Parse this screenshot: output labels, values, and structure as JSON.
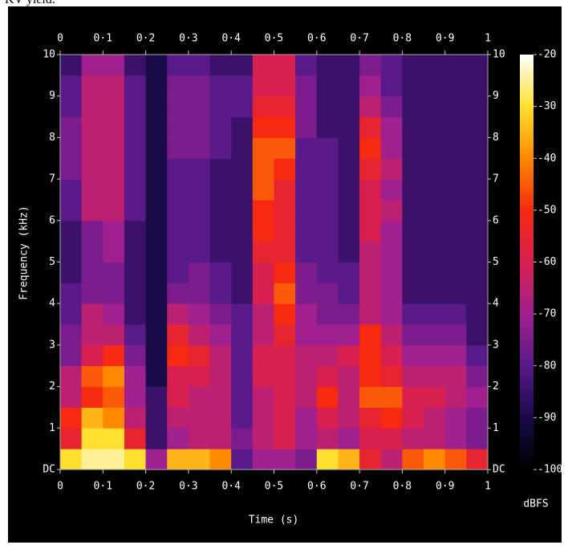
{
  "caption": "KV yield.",
  "chart_data": {
    "type": "heatmap",
    "x_label": "Time (s)",
    "y_label": "Frequency (kHz)",
    "colorbar_label": "dBFS",
    "xlim": [
      0,
      1
    ],
    "ylim": [
      0,
      10
    ],
    "zlim": [
      -100,
      -20
    ],
    "xticks": [
      0,
      {
        "value": 0.1,
        "label": "0·1"
      },
      {
        "value": 0.2,
        "label": "0·2"
      },
      {
        "value": 0.3,
        "label": "0·3"
      },
      {
        "value": 0.4,
        "label": "0·4"
      },
      {
        "value": 0.5,
        "label": "0·5"
      },
      {
        "value": 0.6,
        "label": "0·6"
      },
      {
        "value": 0.7,
        "label": "0·7"
      },
      {
        "value": 0.8,
        "label": "0·8"
      },
      {
        "value": 0.9,
        "label": "0·9"
      },
      1
    ],
    "yticks": [
      {
        "value": 0,
        "label": "DC"
      },
      1,
      2,
      3,
      4,
      5,
      6,
      7,
      8,
      9,
      10
    ],
    "zticks": [
      -20,
      -30,
      -40,
      -50,
      -60,
      -70,
      -80,
      -90,
      -100
    ],
    "colormap": [
      "#000000",
      "#1a0a48",
      "#5a1a8a",
      "#a0208f",
      "#d82050",
      "#f52a10",
      "#ff8a00",
      "#ffe030",
      "#ffffff"
    ],
    "z": [
      [
        -30,
        -55,
        -50,
        -65,
        -65,
        -75,
        -75,
        -80,
        -80,
        -85,
        -85,
        -85,
        -80,
        -80,
        -75,
        -75,
        -75,
        -80,
        -80,
        -85
      ],
      [
        -25,
        -30,
        -35,
        -50,
        -45,
        -60,
        -65,
        -65,
        -75,
        -75,
        -75,
        -75,
        -65,
        -65,
        -65,
        -65,
        -65,
        -65,
        -65,
        -70
      ],
      [
        -25,
        -30,
        -40,
        -45,
        -40,
        -50,
        -65,
        -70,
        -75,
        -75,
        -70,
        -70,
        -65,
        -65,
        -65,
        -65,
        -65,
        -65,
        -65,
        -70
      ],
      [
        -30,
        -55,
        -65,
        -70,
        -70,
        -75,
        -80,
        -85,
        -85,
        -85,
        -85,
        -85,
        -80,
        -80,
        -80,
        -80,
        -80,
        -80,
        -80,
        -85
      ],
      [
        -70,
        -85,
        -85,
        -85,
        -90,
        -90,
        -90,
        -90,
        -90,
        -90,
        -90,
        -90,
        -90,
        -90,
        -90,
        -90,
        -90,
        -90,
        -90,
        -90
      ],
      [
        -35,
        -70,
        -65,
        -60,
        -60,
        -50,
        -55,
        -65,
        -75,
        -80,
        -80,
        -80,
        -80,
        -80,
        -80,
        -75,
        -75,
        -75,
        -75,
        -80
      ],
      [
        -35,
        -65,
        -65,
        -65,
        -60,
        -55,
        -65,
        -70,
        -75,
        -75,
        -80,
        -80,
        -80,
        -80,
        -80,
        -75,
        -75,
        -75,
        -75,
        -80
      ],
      [
        -40,
        -65,
        -65,
        -65,
        -65,
        -65,
        -70,
        -75,
        -80,
        -80,
        -85,
        -85,
        -85,
        -85,
        -85,
        -80,
        -80,
        -80,
        -80,
        -85
      ],
      [
        -80,
        -75,
        -80,
        -80,
        -80,
        -80,
        -80,
        -80,
        -85,
        -85,
        -85,
        -85,
        -85,
        -85,
        -85,
        -85,
        -85,
        -80,
        -80,
        -85
      ],
      [
        -70,
        -65,
        -65,
        -65,
        -60,
        -60,
        -65,
        -65,
        -60,
        -60,
        -55,
        -50,
        -50,
        -45,
        -45,
        -45,
        -50,
        -55,
        -60,
        -60
      ],
      [
        -70,
        -60,
        -60,
        -60,
        -60,
        -60,
        -55,
        -50,
        -45,
        -50,
        -55,
        -55,
        -55,
        -55,
        -50,
        -45,
        -50,
        -55,
        -60,
        -60
      ],
      [
        -75,
        -70,
        -70,
        -65,
        -65,
        -65,
        -70,
        -70,
        -75,
        -75,
        -80,
        -80,
        -80,
        -80,
        -80,
        -80,
        -75,
        -75,
        -75,
        -80
      ],
      [
        -30,
        -65,
        -60,
        -50,
        -60,
        -65,
        -70,
        -75,
        -75,
        -80,
        -80,
        -80,
        -80,
        -80,
        -80,
        -80,
        -85,
        -85,
        -85,
        -85
      ],
      [
        -35,
        -70,
        -65,
        -65,
        -65,
        -60,
        -70,
        -75,
        -80,
        -80,
        -85,
        -85,
        -85,
        -85,
        -85,
        -85,
        -85,
        -85,
        -85,
        -85
      ],
      [
        -55,
        -60,
        -55,
        -45,
        -50,
        -50,
        -50,
        -65,
        -65,
        -65,
        -65,
        -60,
        -60,
        -60,
        -55,
        -50,
        -55,
        -65,
        -70,
        -75
      ],
      [
        -65,
        -60,
        -50,
        -45,
        -55,
        -60,
        -65,
        -70,
        -70,
        -70,
        -70,
        -70,
        -65,
        -70,
        -65,
        -70,
        -70,
        -75,
        -80,
        -80
      ],
      [
        -45,
        -65,
        -60,
        -60,
        -65,
        -70,
        -75,
        -80,
        -85,
        -85,
        -85,
        -85,
        -85,
        -85,
        -85,
        -85,
        -85,
        -85,
        -85,
        -85
      ],
      [
        -40,
        -65,
        -65,
        -60,
        -65,
        -70,
        -75,
        -80,
        -85,
        -85,
        -85,
        -85,
        -85,
        -85,
        -85,
        -85,
        -85,
        -85,
        -85,
        -85
      ],
      [
        -45,
        -70,
        -70,
        -65,
        -65,
        -70,
        -75,
        -80,
        -85,
        -85,
        -85,
        -85,
        -85,
        -85,
        -85,
        -85,
        -85,
        -85,
        -85,
        -85
      ],
      [
        -55,
        -75,
        -75,
        -70,
        -75,
        -80,
        -85,
        -85,
        -85,
        -85,
        -85,
        -85,
        -85,
        -85,
        -85,
        -85,
        -85,
        -85,
        -85,
        -85
      ]
    ]
  }
}
